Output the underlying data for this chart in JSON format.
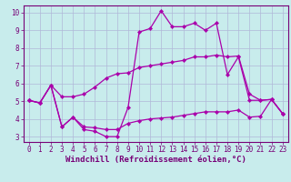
{
  "xlabel": "Windchill (Refroidissement éolien,°C)",
  "background_color": "#c8ecec",
  "grid_color": "#b0b8d8",
  "line_color": "#aa00aa",
  "xlim": [
    -0.5,
    23.5
  ],
  "ylim": [
    2.7,
    10.4
  ],
  "xticks": [
    0,
    1,
    2,
    3,
    4,
    5,
    6,
    7,
    8,
    9,
    10,
    11,
    12,
    13,
    14,
    15,
    16,
    17,
    18,
    19,
    20,
    21,
    22,
    23
  ],
  "yticks": [
    3,
    4,
    5,
    6,
    7,
    8,
    9,
    10
  ],
  "line1_x": [
    0,
    1,
    2,
    3,
    4,
    5,
    6,
    7,
    8,
    9,
    10,
    11,
    12,
    13,
    14,
    15,
    16,
    17,
    18,
    19,
    20,
    21,
    22,
    23
  ],
  "line1_y": [
    5.05,
    4.9,
    5.9,
    3.55,
    4.1,
    3.4,
    3.3,
    3.0,
    3.0,
    4.65,
    8.9,
    9.1,
    10.1,
    9.2,
    9.2,
    9.4,
    9.0,
    9.4,
    6.5,
    7.5,
    5.05,
    5.05,
    5.1,
    4.3
  ],
  "line2_x": [
    0,
    1,
    2,
    3,
    4,
    5,
    6,
    7,
    8,
    9,
    10,
    11,
    12,
    13,
    14,
    15,
    16,
    17,
    18,
    19,
    20,
    21,
    22,
    23
  ],
  "line2_y": [
    5.05,
    4.9,
    5.9,
    5.25,
    5.25,
    5.4,
    5.8,
    6.3,
    6.55,
    6.6,
    6.9,
    7.0,
    7.1,
    7.2,
    7.3,
    7.5,
    7.5,
    7.6,
    7.5,
    7.55,
    5.4,
    5.05,
    5.1,
    4.3
  ],
  "line3_x": [
    0,
    1,
    2,
    3,
    4,
    5,
    6,
    7,
    8,
    9,
    10,
    11,
    12,
    13,
    14,
    15,
    16,
    17,
    18,
    19,
    20,
    21,
    22,
    23
  ],
  "line3_y": [
    5.05,
    4.9,
    5.9,
    3.55,
    4.1,
    3.55,
    3.5,
    3.4,
    3.4,
    3.75,
    3.9,
    4.0,
    4.05,
    4.1,
    4.2,
    4.3,
    4.4,
    4.4,
    4.4,
    4.5,
    4.1,
    4.15,
    5.1,
    4.3
  ],
  "marker": "D",
  "markersize": 2.2,
  "linewidth": 0.9,
  "font_color": "#770077",
  "tick_fontsize": 5.5,
  "label_fontsize": 6.5
}
